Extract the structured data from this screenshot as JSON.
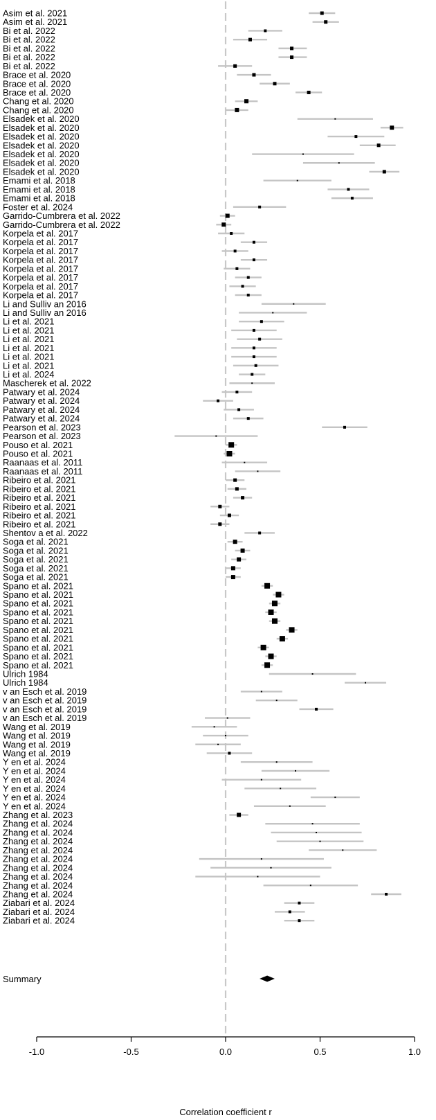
{
  "chart_data": {
    "type": "forest",
    "xlabel": "Correlation coefficient r",
    "xlim": [
      -1.0,
      1.0
    ],
    "xticks": [
      -1.0,
      -0.5,
      0.0,
      0.5,
      1.0
    ],
    "xtick_labels": [
      "-1.0",
      "-0.5",
      "0.0",
      "0.5",
      "1.0"
    ],
    "reference_line": 0.0,
    "summary": {
      "label": "Summary",
      "estimate": 0.22,
      "lower": 0.18,
      "upper": 0.26
    },
    "studies": [
      {
        "label": "Asim et al. 2021",
        "r": 0.51,
        "lower": 0.44,
        "upper": 0.58,
        "weight": 3
      },
      {
        "label": "Asim et al. 2021",
        "r": 0.53,
        "lower": 0.46,
        "upper": 0.6,
        "weight": 3
      },
      {
        "label": "Bi et al. 2022",
        "r": 0.21,
        "lower": 0.12,
        "upper": 0.3,
        "weight": 2
      },
      {
        "label": "Bi et al. 2022",
        "r": 0.13,
        "lower": 0.04,
        "upper": 0.22,
        "weight": 3
      },
      {
        "label": "Bi et al. 2022",
        "r": 0.35,
        "lower": 0.28,
        "upper": 0.43,
        "weight": 3
      },
      {
        "label": "Bi et al. 2022",
        "r": 0.35,
        "lower": 0.28,
        "upper": 0.43,
        "weight": 3
      },
      {
        "label": "Bi et al. 2022",
        "r": 0.05,
        "lower": -0.04,
        "upper": 0.14,
        "weight": 3
      },
      {
        "label": "Brace et al. 2020",
        "r": 0.15,
        "lower": 0.06,
        "upper": 0.24,
        "weight": 3
      },
      {
        "label": "Brace et al. 2020",
        "r": 0.26,
        "lower": 0.18,
        "upper": 0.34,
        "weight": 3
      },
      {
        "label": "Brace et al. 2020",
        "r": 0.44,
        "lower": 0.37,
        "upper": 0.51,
        "weight": 3
      },
      {
        "label": "Chang et al. 2020",
        "r": 0.11,
        "lower": 0.05,
        "upper": 0.17,
        "weight": 4
      },
      {
        "label": "Chang et al. 2020",
        "r": 0.06,
        "lower": 0.0,
        "upper": 0.12,
        "weight": 4
      },
      {
        "label": "Elsadek et al. 2020",
        "r": 0.58,
        "lower": 0.38,
        "upper": 0.78,
        "weight": 1
      },
      {
        "label": "Elsadek et al. 2020",
        "r": 0.88,
        "lower": 0.82,
        "upper": 0.94,
        "weight": 4
      },
      {
        "label": "Elsadek et al. 2020",
        "r": 0.69,
        "lower": 0.54,
        "upper": 0.84,
        "weight": 2
      },
      {
        "label": "Elsadek et al. 2020",
        "r": 0.81,
        "lower": 0.71,
        "upper": 0.9,
        "weight": 3
      },
      {
        "label": "Elsadek et al. 2020",
        "r": 0.41,
        "lower": 0.14,
        "upper": 0.68,
        "weight": 1
      },
      {
        "label": "Elsadek et al. 2020",
        "r": 0.6,
        "lower": 0.41,
        "upper": 0.79,
        "weight": 1
      },
      {
        "label": "Elsadek et al. 2020",
        "r": 0.84,
        "lower": 0.76,
        "upper": 0.92,
        "weight": 3
      },
      {
        "label": "Emami et al. 2018",
        "r": 0.38,
        "lower": 0.2,
        "upper": 0.56,
        "weight": 1
      },
      {
        "label": "Emami et al. 2018",
        "r": 0.65,
        "lower": 0.54,
        "upper": 0.76,
        "weight": 2
      },
      {
        "label": "Emami et al. 2018",
        "r": 0.67,
        "lower": 0.56,
        "upper": 0.78,
        "weight": 2
      },
      {
        "label": "Foster et al. 2024",
        "r": 0.18,
        "lower": 0.04,
        "upper": 0.32,
        "weight": 2
      },
      {
        "label": "Garrido-Cumbrera et al. 2022",
        "r": 0.01,
        "lower": -0.03,
        "upper": 0.05,
        "weight": 4
      },
      {
        "label": "Garrido-Cumbrera et al. 2022",
        "r": -0.01,
        "lower": -0.05,
        "upper": 0.03,
        "weight": 4
      },
      {
        "label": "Korpela et al. 2017",
        "r": 0.03,
        "lower": -0.04,
        "upper": 0.1,
        "weight": 2
      },
      {
        "label": "Korpela et al. 2017",
        "r": 0.15,
        "lower": 0.08,
        "upper": 0.22,
        "weight": 2
      },
      {
        "label": "Korpela et al. 2017",
        "r": 0.05,
        "lower": -0.02,
        "upper": 0.12,
        "weight": 2
      },
      {
        "label": "Korpela et al. 2017",
        "r": 0.15,
        "lower": 0.08,
        "upper": 0.22,
        "weight": 2
      },
      {
        "label": "Korpela et al. 2017",
        "r": 0.06,
        "lower": -0.01,
        "upper": 0.13,
        "weight": 2
      },
      {
        "label": "Korpela et al. 2017",
        "r": 0.12,
        "lower": 0.05,
        "upper": 0.19,
        "weight": 2
      },
      {
        "label": "Korpela et al. 2017",
        "r": 0.09,
        "lower": 0.02,
        "upper": 0.16,
        "weight": 2
      },
      {
        "label": "Korpela et al. 2017",
        "r": 0.12,
        "lower": 0.05,
        "upper": 0.19,
        "weight": 2
      },
      {
        "label": "Li and Sulliv an 2016",
        "r": 0.36,
        "lower": 0.19,
        "upper": 0.53,
        "weight": 1
      },
      {
        "label": "Li and Sulliv an 2016",
        "r": 0.25,
        "lower": 0.07,
        "upper": 0.43,
        "weight": 1
      },
      {
        "label": "Li et al. 2021",
        "r": 0.19,
        "lower": 0.07,
        "upper": 0.31,
        "weight": 2
      },
      {
        "label": "Li et al. 2021",
        "r": 0.15,
        "lower": 0.03,
        "upper": 0.27,
        "weight": 2
      },
      {
        "label": "Li et al. 2021",
        "r": 0.18,
        "lower": 0.06,
        "upper": 0.3,
        "weight": 2
      },
      {
        "label": "Li et al. 2021",
        "r": 0.15,
        "lower": 0.03,
        "upper": 0.27,
        "weight": 2
      },
      {
        "label": "Li et al. 2021",
        "r": 0.15,
        "lower": 0.03,
        "upper": 0.27,
        "weight": 2
      },
      {
        "label": "Li et al. 2021",
        "r": 0.16,
        "lower": 0.04,
        "upper": 0.28,
        "weight": 2
      },
      {
        "label": "Li et al. 2024",
        "r": 0.14,
        "lower": 0.07,
        "upper": 0.21,
        "weight": 2
      },
      {
        "label": "Mascherek et al. 2022",
        "r": 0.14,
        "lower": 0.02,
        "upper": 0.26,
        "weight": 1
      },
      {
        "label": "Patwary et al. 2024",
        "r": 0.06,
        "lower": -0.02,
        "upper": 0.14,
        "weight": 2
      },
      {
        "label": "Patwary et al. 2024",
        "r": -0.04,
        "lower": -0.12,
        "upper": 0.04,
        "weight": 2
      },
      {
        "label": "Patwary et al. 2024",
        "r": 0.07,
        "lower": -0.01,
        "upper": 0.15,
        "weight": 2
      },
      {
        "label": "Patwary et al. 2024",
        "r": 0.12,
        "lower": 0.04,
        "upper": 0.2,
        "weight": 2
      },
      {
        "label": "Pearson et al. 2023",
        "r": 0.63,
        "lower": 0.51,
        "upper": 0.75,
        "weight": 2
      },
      {
        "label": "Pearson et al. 2023",
        "r": -0.05,
        "lower": -0.27,
        "upper": 0.17,
        "weight": 1
      },
      {
        "label": "Pouso et al. 2021",
        "r": 0.03,
        "lower": 0.0,
        "upper": 0.06,
        "weight": 5
      },
      {
        "label": "Pouso et al. 2021",
        "r": 0.02,
        "lower": -0.01,
        "upper": 0.05,
        "weight": 5
      },
      {
        "label": "Raanaas et al. 2011",
        "r": 0.1,
        "lower": -0.02,
        "upper": 0.22,
        "weight": 1
      },
      {
        "label": "Raanaas et al. 2011",
        "r": 0.17,
        "lower": 0.05,
        "upper": 0.29,
        "weight": 1
      },
      {
        "label": "Ribeiro et al. 2021",
        "r": 0.05,
        "lower": 0.0,
        "upper": 0.1,
        "weight": 3
      },
      {
        "label": "Ribeiro et al. 2021",
        "r": 0.06,
        "lower": 0.01,
        "upper": 0.11,
        "weight": 3
      },
      {
        "label": "Ribeiro et al. 2021",
        "r": 0.09,
        "lower": 0.04,
        "upper": 0.14,
        "weight": 3
      },
      {
        "label": "Ribeiro et al. 2021",
        "r": -0.03,
        "lower": -0.08,
        "upper": 0.02,
        "weight": 3
      },
      {
        "label": "Ribeiro et al. 2021",
        "r": 0.02,
        "lower": -0.03,
        "upper": 0.07,
        "weight": 3
      },
      {
        "label": "Ribeiro et al. 2021",
        "r": -0.03,
        "lower": -0.08,
        "upper": 0.02,
        "weight": 3
      },
      {
        "label": "Shentov a et al. 2022",
        "r": 0.18,
        "lower": 0.1,
        "upper": 0.26,
        "weight": 2
      },
      {
        "label": "Soga et al. 2021",
        "r": 0.05,
        "lower": 0.01,
        "upper": 0.09,
        "weight": 4
      },
      {
        "label": "Soga et al. 2021",
        "r": 0.09,
        "lower": 0.05,
        "upper": 0.13,
        "weight": 4
      },
      {
        "label": "Soga et al. 2021",
        "r": 0.07,
        "lower": 0.03,
        "upper": 0.11,
        "weight": 4
      },
      {
        "label": "Soga et al. 2021",
        "r": 0.04,
        "lower": 0.0,
        "upper": 0.08,
        "weight": 4
      },
      {
        "label": "Soga et al. 2021",
        "r": 0.04,
        "lower": 0.0,
        "upper": 0.08,
        "weight": 4
      },
      {
        "label": "Spano et al. 2021",
        "r": 0.22,
        "lower": 0.19,
        "upper": 0.25,
        "weight": 5
      },
      {
        "label": "Spano et al. 2021",
        "r": 0.28,
        "lower": 0.25,
        "upper": 0.31,
        "weight": 5
      },
      {
        "label": "Spano et al. 2021",
        "r": 0.26,
        "lower": 0.23,
        "upper": 0.29,
        "weight": 5
      },
      {
        "label": "Spano et al. 2021",
        "r": 0.24,
        "lower": 0.21,
        "upper": 0.27,
        "weight": 5
      },
      {
        "label": "Spano et al. 2021",
        "r": 0.26,
        "lower": 0.23,
        "upper": 0.29,
        "weight": 5
      },
      {
        "label": "Spano et al. 2021",
        "r": 0.35,
        "lower": 0.32,
        "upper": 0.38,
        "weight": 5
      },
      {
        "label": "Spano et al. 2021",
        "r": 0.3,
        "lower": 0.27,
        "upper": 0.33,
        "weight": 5
      },
      {
        "label": "Spano et al. 2021",
        "r": 0.2,
        "lower": 0.17,
        "upper": 0.23,
        "weight": 5
      },
      {
        "label": "Spano et al. 2021",
        "r": 0.24,
        "lower": 0.21,
        "upper": 0.27,
        "weight": 5
      },
      {
        "label": "Spano et al. 2021",
        "r": 0.22,
        "lower": 0.19,
        "upper": 0.25,
        "weight": 5
      },
      {
        "label": "Ulrich 1984",
        "r": 0.46,
        "lower": 0.23,
        "upper": 0.69,
        "weight": 1
      },
      {
        "label": "Ulrich 1984",
        "r": 0.74,
        "lower": 0.63,
        "upper": 0.85,
        "weight": 1
      },
      {
        "label": "v an Esch et al. 2019",
        "r": 0.19,
        "lower": 0.08,
        "upper": 0.3,
        "weight": 1
      },
      {
        "label": "v an Esch et al. 2019",
        "r": 0.27,
        "lower": 0.16,
        "upper": 0.38,
        "weight": 1
      },
      {
        "label": "v an Esch et al. 2019",
        "r": 0.48,
        "lower": 0.39,
        "upper": 0.57,
        "weight": 2
      },
      {
        "label": "v an Esch et al. 2019",
        "r": 0.01,
        "lower": -0.11,
        "upper": 0.13,
        "weight": 1
      },
      {
        "label": "Wang et al. 2019",
        "r": -0.06,
        "lower": -0.18,
        "upper": 0.06,
        "weight": 1
      },
      {
        "label": "Wang et al. 2019",
        "r": 0.0,
        "lower": -0.12,
        "upper": 0.12,
        "weight": 1
      },
      {
        "label": "Wang et al. 2019",
        "r": -0.04,
        "lower": -0.16,
        "upper": 0.08,
        "weight": 1
      },
      {
        "label": "Wang et al. 2019",
        "r": 0.02,
        "lower": -0.1,
        "upper": 0.14,
        "weight": 2
      },
      {
        "label": "Y en et al. 2024",
        "r": 0.27,
        "lower": 0.08,
        "upper": 0.46,
        "weight": 1
      },
      {
        "label": "Y en et al. 2024",
        "r": 0.37,
        "lower": 0.19,
        "upper": 0.55,
        "weight": 1
      },
      {
        "label": "Y en et al. 2024",
        "r": 0.19,
        "lower": -0.02,
        "upper": 0.4,
        "weight": 1
      },
      {
        "label": "Y en et al. 2024",
        "r": 0.29,
        "lower": 0.1,
        "upper": 0.48,
        "weight": 1
      },
      {
        "label": "Y en et al. 2024",
        "r": 0.58,
        "lower": 0.45,
        "upper": 0.71,
        "weight": 1
      },
      {
        "label": "Y en et al. 2024",
        "r": 0.34,
        "lower": 0.15,
        "upper": 0.53,
        "weight": 1
      },
      {
        "label": "Zhang et al. 2023",
        "r": 0.07,
        "lower": 0.02,
        "upper": 0.12,
        "weight": 4
      },
      {
        "label": "Zhang et al. 2024",
        "r": 0.46,
        "lower": 0.21,
        "upper": 0.71,
        "weight": 1
      },
      {
        "label": "Zhang et al. 2024",
        "r": 0.48,
        "lower": 0.24,
        "upper": 0.72,
        "weight": 1
      },
      {
        "label": "Zhang et al. 2024",
        "r": 0.5,
        "lower": 0.27,
        "upper": 0.73,
        "weight": 1
      },
      {
        "label": "Zhang et al. 2024",
        "r": 0.62,
        "lower": 0.44,
        "upper": 0.8,
        "weight": 1
      },
      {
        "label": "Zhang et al. 2024",
        "r": 0.19,
        "lower": -0.14,
        "upper": 0.52,
        "weight": 1
      },
      {
        "label": "Zhang et al. 2024",
        "r": 0.24,
        "lower": -0.08,
        "upper": 0.56,
        "weight": 1
      },
      {
        "label": "Zhang et al. 2024",
        "r": 0.17,
        "lower": -0.16,
        "upper": 0.5,
        "weight": 1
      },
      {
        "label": "Zhang et al. 2024",
        "r": 0.45,
        "lower": 0.2,
        "upper": 0.7,
        "weight": 1
      },
      {
        "label": "Zhang et al. 2024",
        "r": 0.85,
        "lower": 0.77,
        "upper": 0.93,
        "weight": 2
      },
      {
        "label": "Ziabari et al. 2024",
        "r": 0.39,
        "lower": 0.31,
        "upper": 0.47,
        "weight": 2
      },
      {
        "label": "Ziabari et al. 2024",
        "r": 0.34,
        "lower": 0.26,
        "upper": 0.42,
        "weight": 2
      },
      {
        "label": "Ziabari et al. 2024",
        "r": 0.39,
        "lower": 0.31,
        "upper": 0.47,
        "weight": 2
      }
    ],
    "colors": {
      "ci_line": "#c4c4c4",
      "point": "#000000",
      "reference_line": "#c8c8c8",
      "axis": "#000000"
    }
  }
}
